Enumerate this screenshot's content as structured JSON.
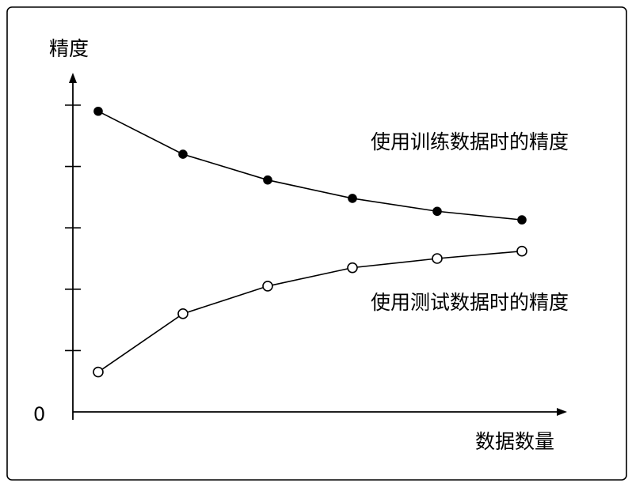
{
  "chart_data": {
    "type": "line",
    "title": "",
    "xlabel": "数据数量",
    "ylabel": "精度",
    "y_tick_labels": [
      "0"
    ],
    "x": [
      1,
      2,
      3,
      4,
      5,
      6
    ],
    "ylim": [
      0,
      5
    ],
    "grid": false,
    "series": [
      {
        "name": "使用训练数据时的精度",
        "marker": "filled-circle",
        "values": [
          4.9,
          4.2,
          3.78,
          3.48,
          3.27,
          3.13
        ]
      },
      {
        "name": "使用测试数据时的精度",
        "marker": "open-circle",
        "values": [
          0.65,
          1.6,
          2.05,
          2.35,
          2.5,
          2.62
        ]
      }
    ]
  }
}
